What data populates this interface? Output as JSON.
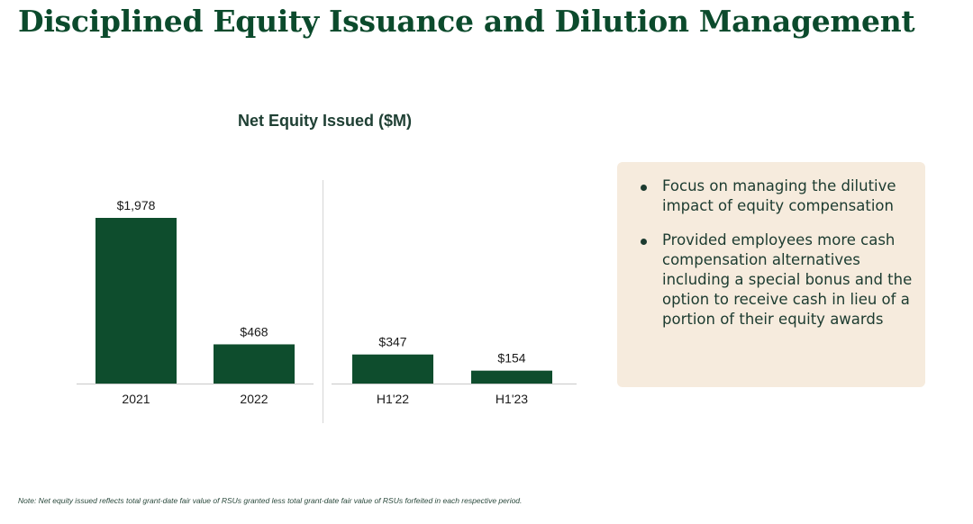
{
  "title": "Disciplined Equity Issuance and Dilution Management",
  "chart_data": {
    "type": "bar",
    "title": "Net Equity Issued ($M)",
    "categories": [
      "2021",
      "2022",
      "H1'22",
      "H1'23"
    ],
    "values": [
      1978,
      468,
      347,
      154
    ],
    "data_labels": [
      "$1,978",
      "$468",
      "$347",
      "$154"
    ],
    "groups": [
      {
        "categories": [
          "2021",
          "2022"
        ]
      },
      {
        "categories": [
          "H1'22",
          "H1'23"
        ]
      }
    ],
    "xlabel": "",
    "ylabel": "",
    "ylim": [
      0,
      1978
    ],
    "grid": false,
    "bar_color": "#0e4d2d"
  },
  "callout": {
    "bullets": [
      "Focus on managing the dilutive impact of equity compensation",
      "Provided employees more cash compensation alternatives including a special bonus and the option to receive cash in lieu of a portion of their equity awards"
    ]
  },
  "footnote": "Note: Net equity issued reflects total grant-date fair value of RSUs granted less total grant-date fair value of RSUs forfeited in each respective period.",
  "colors": {
    "title": "#0b4a2c",
    "bar": "#0e4d2d",
    "callout_bg": "#f6ebdd"
  }
}
